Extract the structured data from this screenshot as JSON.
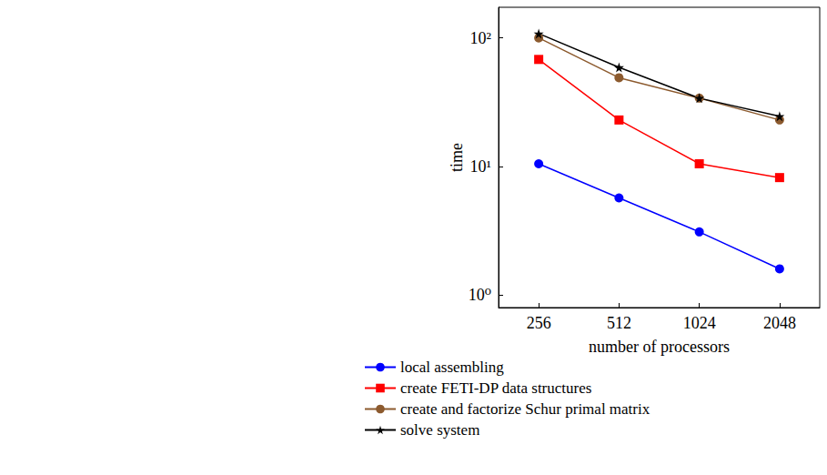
{
  "chart_data": {
    "type": "line",
    "x_label": "number of processors",
    "y_label": "time",
    "categories": [
      "256",
      "512",
      "1024",
      "2048"
    ],
    "log": "y",
    "ylim": [
      0.8,
      173
    ],
    "yticks": [
      {
        "value": 1,
        "label": "10⁰"
      },
      {
        "value": 10,
        "label": "10¹"
      },
      {
        "value": 100,
        "label": "10²"
      }
    ],
    "grid": false,
    "legend": "bottom",
    "series": [
      {
        "name": "local assembling",
        "color": "#0000ff",
        "marker": "circle",
        "values": [
          10.5,
          5.7,
          3.1,
          1.6
        ]
      },
      {
        "name": "create FETI-DP data structures",
        "color": "#ff0000",
        "marker": "square",
        "values": [
          68,
          23,
          10.5,
          8.2
        ]
      },
      {
        "name": "create and factorize Schur primal matrix",
        "color": "#8c5a2e",
        "marker": "circle",
        "values": [
          100,
          49,
          34,
          23
        ]
      },
      {
        "name": "solve system",
        "color": "#000000",
        "marker": "star",
        "values": [
          108,
          59,
          34,
          24.6
        ]
      }
    ]
  }
}
